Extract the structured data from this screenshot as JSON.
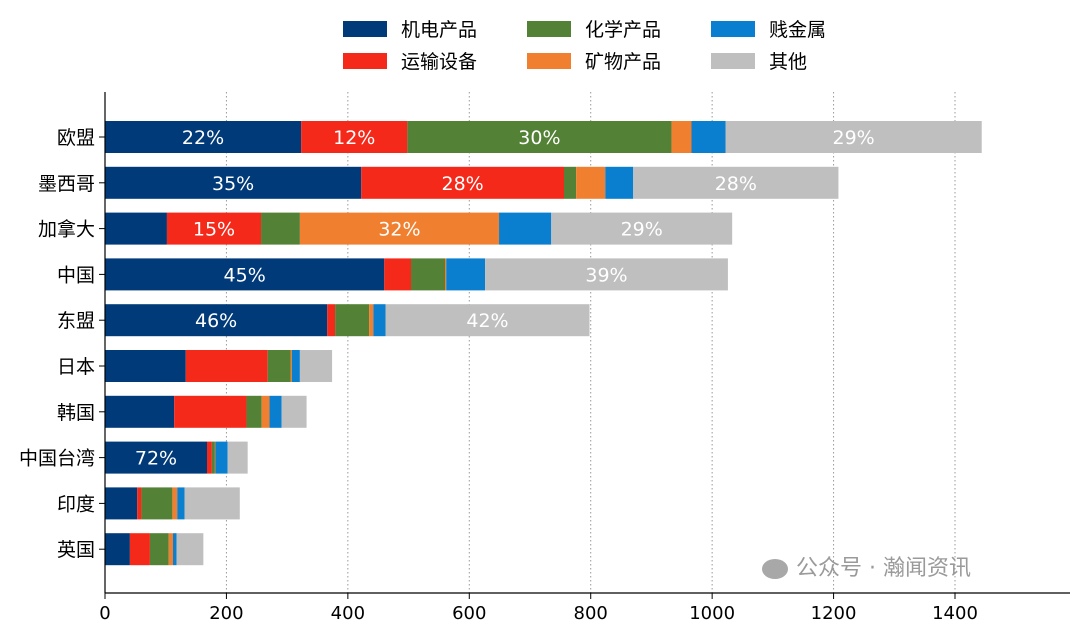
{
  "chart_data": {
    "type": "bar",
    "orientation": "horizontal",
    "stacked": true,
    "categories": [
      "欧盟",
      "墨西哥",
      "加拿大",
      "中国",
      "东盟",
      "日本",
      "韩国",
      "中国台湾",
      "印度",
      "英国"
    ],
    "series": [
      {
        "name": "机电产品",
        "color": "#003A78",
        "values": [
          323,
          422,
          102,
          460,
          366,
          133,
          114,
          168,
          53,
          41
        ]
      },
      {
        "name": "运输设备",
        "color": "#F5291A",
        "values": [
          175,
          334,
          155,
          44,
          13,
          135,
          119,
          8,
          7,
          33
        ]
      },
      {
        "name": "化学产品",
        "color": "#538135",
        "values": [
          435,
          20,
          64,
          56,
          56,
          38,
          25,
          5,
          51,
          31
        ]
      },
      {
        "name": "矿物产品",
        "color": "#F08030",
        "values": [
          33,
          48,
          328,
          2,
          7,
          2,
          13,
          1,
          8,
          7
        ]
      },
      {
        "name": "贱金属",
        "color": "#0A7FD0",
        "values": [
          56,
          46,
          86,
          64,
          20,
          13,
          20,
          20,
          12,
          6
        ]
      },
      {
        "name": "其他",
        "color": "#BFBFBF",
        "values": [
          422,
          338,
          298,
          400,
          336,
          53,
          41,
          33,
          91,
          44
        ]
      }
    ],
    "data_labels": [
      {
        "category": "欧盟",
        "series": "机电产品",
        "text": "22%"
      },
      {
        "category": "欧盟",
        "series": "运输设备",
        "text": "12%"
      },
      {
        "category": "欧盟",
        "series": "化学产品",
        "text": "30%"
      },
      {
        "category": "欧盟",
        "series": "其他",
        "text": "29%"
      },
      {
        "category": "墨西哥",
        "series": "机电产品",
        "text": "35%"
      },
      {
        "category": "墨西哥",
        "series": "运输设备",
        "text": "28%"
      },
      {
        "category": "墨西哥",
        "series": "其他",
        "text": "28%"
      },
      {
        "category": "加拿大",
        "series": "运输设备",
        "text": "15%"
      },
      {
        "category": "加拿大",
        "series": "矿物产品",
        "text": "32%"
      },
      {
        "category": "加拿大",
        "series": "其他",
        "text": "29%"
      },
      {
        "category": "中国",
        "series": "机电产品",
        "text": "45%"
      },
      {
        "category": "中国",
        "series": "其他",
        "text": "39%"
      },
      {
        "category": "东盟",
        "series": "机电产品",
        "text": "46%"
      },
      {
        "category": "东盟",
        "series": "其他",
        "text": "42%"
      },
      {
        "category": "中国台湾",
        "series": "机电产品",
        "text": "72%"
      }
    ],
    "xlim": [
      0,
      1400
    ],
    "xticks": [
      0,
      200,
      400,
      600,
      800,
      1000,
      1200,
      1400
    ],
    "grid": "vertical dotted",
    "legend_placement": "top-center"
  },
  "watermark": "公众号 · 瀚闻资讯"
}
